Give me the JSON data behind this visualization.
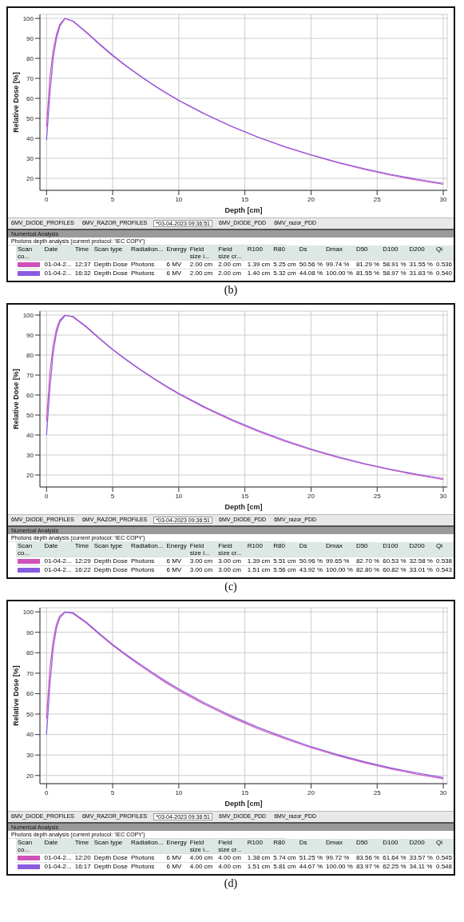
{
  "chart_data": [
    {
      "type": "line",
      "xlabel": "Depth [cm]",
      "ylabel": "Relative Dose [%]",
      "x": [
        0,
        0.25,
        0.5,
        0.75,
        1,
        1.4,
        2,
        3,
        4,
        5,
        6,
        7,
        8,
        9,
        10,
        12,
        14,
        16,
        18,
        20,
        22,
        24,
        26,
        28,
        30
      ],
      "xlim": [
        -0.5,
        30.3
      ],
      "xticks": [
        0,
        5,
        10,
        15,
        20,
        25,
        30
      ],
      "ylim": [
        14,
        102
      ],
      "yticks": [
        20,
        30,
        40,
        50,
        60,
        70,
        80,
        90,
        100
      ],
      "grid": true,
      "legend": false,
      "marker": "none",
      "line_style": "solid",
      "series": [
        {
          "color": "#d050b8",
          "values": [
            46,
            70,
            84,
            92,
            97,
            100,
            98.5,
            93,
            87,
            81.3,
            76.2,
            71.5,
            67,
            62.8,
            58.9,
            52,
            45.9,
            40.5,
            35.7,
            31.6,
            27.8,
            24.5,
            21.6,
            19.1,
            17
          ]
        },
        {
          "color": "#8a5ce0",
          "values": [
            39,
            62,
            80,
            90,
            96,
            100,
            98.7,
            93.2,
            87.3,
            81.6,
            76.4,
            71.6,
            67.1,
            62.9,
            59,
            52.1,
            46,
            40.6,
            35.9,
            31.8,
            28.1,
            24.9,
            22,
            19.6,
            17.5
          ]
        }
      ],
      "annotations": [
        "6MV_DIODE_PROFILES",
        "6MV_RAZOR_PROFILES",
        "*03-04-2023 09:36:51",
        "6MV_DIODE_PDD",
        "6MV_razor_PDD",
        "Numerical Analysis",
        "Photons depth analysis (current protocol: 'IEC COPY')",
        "Scan co...",
        "Date",
        "Time",
        "Scan type",
        "Radiation...",
        "Energy",
        "Field size i...",
        "Field size cr...",
        "R100",
        "R80",
        "Ds",
        "Dmax",
        "D50",
        "D100",
        "D200",
        "Qi",
        "01-04-2...",
        "12:37",
        "Depth Dose",
        "Photons",
        "6 MV",
        "2.00 cm",
        "2.00 cm",
        "1.39 cm",
        "5.25 cm",
        "50.56 %",
        "99.74 %",
        "81.29 %",
        "58.91 %",
        "31.55 %",
        "0.536",
        "01-04-2...",
        "16:32",
        "Depth Dose",
        "Photons",
        "6 MV",
        "2.00 cm",
        "2.00 cm",
        "1.40 cm",
        "5.32 cm",
        "44.08 %",
        "100.00 %",
        "81.55 %",
        "58.97 %",
        "31.83 %",
        "0.540",
        "(b)"
      ]
    },
    {
      "type": "line",
      "xlabel": "Depth [cm]",
      "ylabel": "Relative Dose [%]",
      "x": [
        0,
        0.25,
        0.5,
        0.75,
        1,
        1.4,
        2,
        3,
        4,
        5,
        6,
        7,
        8,
        9,
        10,
        12,
        14,
        16,
        18,
        20,
        22,
        24,
        26,
        28,
        30
      ],
      "xlim": [
        -0.5,
        30.3
      ],
      "xticks": [
        0,
        5,
        10,
        15,
        20,
        25,
        30
      ],
      "ylim": [
        14,
        102
      ],
      "yticks": [
        20,
        30,
        40,
        50,
        60,
        70,
        80,
        90,
        100
      ],
      "grid": true,
      "legend": false,
      "marker": "none",
      "line_style": "solid",
      "series": [
        {
          "color": "#d050b8",
          "values": [
            47,
            71,
            85,
            93,
            97.5,
            100,
            99,
            94,
            88.2,
            82.7,
            77.7,
            73,
            68.6,
            64.4,
            60.5,
            53.5,
            47.3,
            41.8,
            36.9,
            32.6,
            28.8,
            25.5,
            22.6,
            20,
            17.7
          ]
        },
        {
          "color": "#8a5ce0",
          "values": [
            40,
            63,
            81,
            91,
            96.5,
            99.8,
            99.3,
            94.3,
            88.4,
            82.8,
            77.9,
            73.2,
            68.8,
            64.7,
            60.8,
            53.9,
            47.8,
            42.3,
            37.4,
            33,
            29.2,
            25.8,
            22.9,
            20.4,
            18.2
          ]
        }
      ],
      "annotations": [
        "6MV_DIODE_PROFILES",
        "6MV_RAZOR_PROFILES",
        "*03-04-2023 09:36:51",
        "6MV_DIODE_PDD",
        "6MV_razor_PDD",
        "Numerical Analysis",
        "Photons depth analysis (current protocol: 'IEC COPY')",
        "Scan co...",
        "Date",
        "Time",
        "Scan type",
        "Radiation...",
        "Energy",
        "Field size i...",
        "Field size cr...",
        "R100",
        "R80",
        "Ds",
        "Dmax",
        "D50",
        "D100",
        "D200",
        "Qi",
        "01-04-2...",
        "12:29",
        "Depth Dose",
        "Photons",
        "6 MV",
        "3.00 cm",
        "3.00 cm",
        "1.39 cm",
        "5.51 cm",
        "50.96 %",
        "99.65 %",
        "82.70 %",
        "60.53 %",
        "32.58 %",
        "0.538",
        "01-04-2...",
        "16:22",
        "Depth Dose",
        "Photons",
        "6 MV",
        "3.00 cm",
        "3.00 cm",
        "1.51 cm",
        "5.56 cm",
        "43.92 %",
        "100.00 %",
        "82.80 %",
        "60.82 %",
        "33.01 %",
        "0.543",
        "(c)"
      ]
    },
    {
      "type": "line",
      "xlabel": "Depth [cm]",
      "ylabel": "Relative Dose [%]",
      "x": [
        0,
        0.25,
        0.5,
        0.75,
        1,
        1.4,
        2,
        3,
        4,
        5,
        6,
        7,
        8,
        9,
        10,
        12,
        14,
        16,
        18,
        20,
        22,
        24,
        26,
        28,
        30
      ],
      "xlim": [
        -0.5,
        30.3
      ],
      "xticks": [
        0,
        5,
        10,
        15,
        20,
        25,
        30
      ],
      "ylim": [
        16,
        102
      ],
      "yticks": [
        20,
        30,
        40,
        50,
        60,
        70,
        80,
        90,
        100
      ],
      "grid": true,
      "legend": false,
      "marker": "none",
      "line_style": "solid",
      "series": [
        {
          "color": "#d050b8",
          "values": [
            48,
            72,
            86,
            94,
            98,
            100,
            99.2,
            94.6,
            89,
            83.6,
            78.7,
            74.1,
            69.7,
            65.5,
            61.6,
            54.6,
            48.4,
            42.8,
            38,
            33.6,
            29.7,
            26.3,
            23.3,
            20.6,
            18.4
          ]
        },
        {
          "color": "#8a5ce0",
          "values": [
            40,
            64,
            82,
            92,
            97,
            99.8,
            99.6,
            95,
            89.4,
            84,
            79.2,
            74.7,
            70.3,
            66.2,
            62.3,
            55.3,
            49.1,
            43.5,
            38.6,
            34.1,
            30.2,
            26.8,
            23.8,
            21.2,
            19
          ]
        }
      ],
      "annotations": [
        "6MV_DIODE_PROFILES",
        "6MV_RAZOR_PROFILES",
        "*03-04-2023 09:36:51",
        "6MV_DIODE_PDD",
        "6MV_razor_PDD",
        "Numerical Analysis",
        "Photons depth analysis (current protocol: 'IEC COPY')",
        "Scan co...",
        "Date",
        "Time",
        "Scan type",
        "Radiation...",
        "Energy",
        "Field size i...",
        "Field size cr...",
        "R100",
        "R80",
        "Ds",
        "Dmax",
        "D50",
        "D100",
        "D200",
        "Qi",
        "01-04-2...",
        "12:20",
        "Depth Dose",
        "Photons",
        "6 MV",
        "4.00 cm",
        "4.00 cm",
        "1.38 cm",
        "5.74 cm",
        "51.25 %",
        "99.72 %",
        "83.56 %",
        "61.64 %",
        "33.57 %",
        "0.545",
        "01-04-2...",
        "16:17",
        "Depth Dose",
        "Photons",
        "6 MV",
        "4.00 cm",
        "4.00 cm",
        "1.51 cm",
        "5.81 cm",
        "44.67 %",
        "100.00 %",
        "83.97 %",
        "62.25 %",
        "34.11 %",
        "0.548",
        "(d)"
      ]
    }
  ]
}
